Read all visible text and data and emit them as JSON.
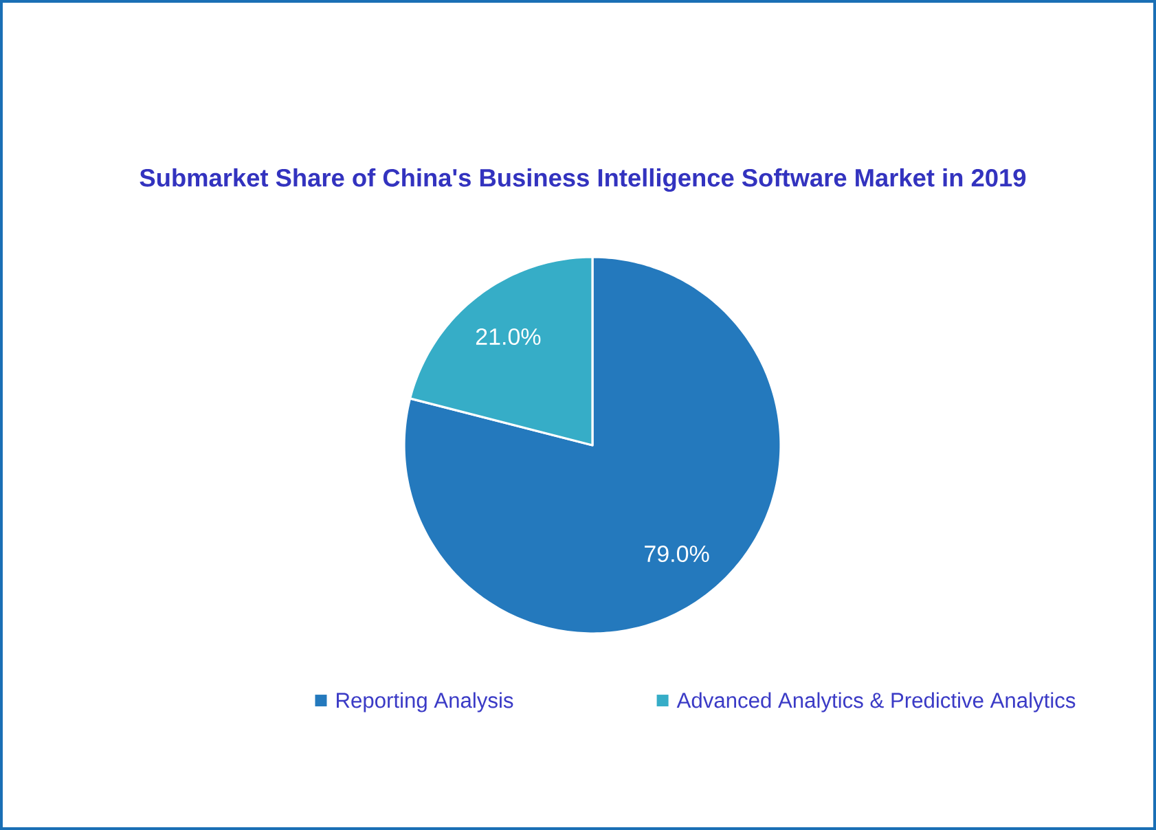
{
  "chart_data": {
    "type": "pie",
    "title": "Submarket Share of China's Business Intelligence Software Market in 2019",
    "categories": [
      "Reporting Analysis",
      "Advanced Analytics & Predictive Analytics"
    ],
    "values": [
      79.0,
      21.0
    ],
    "colors": [
      "#2479bd",
      "#36adc7"
    ],
    "value_labels": [
      "79.0%",
      "21.0%"
    ],
    "legend": "bottom"
  }
}
